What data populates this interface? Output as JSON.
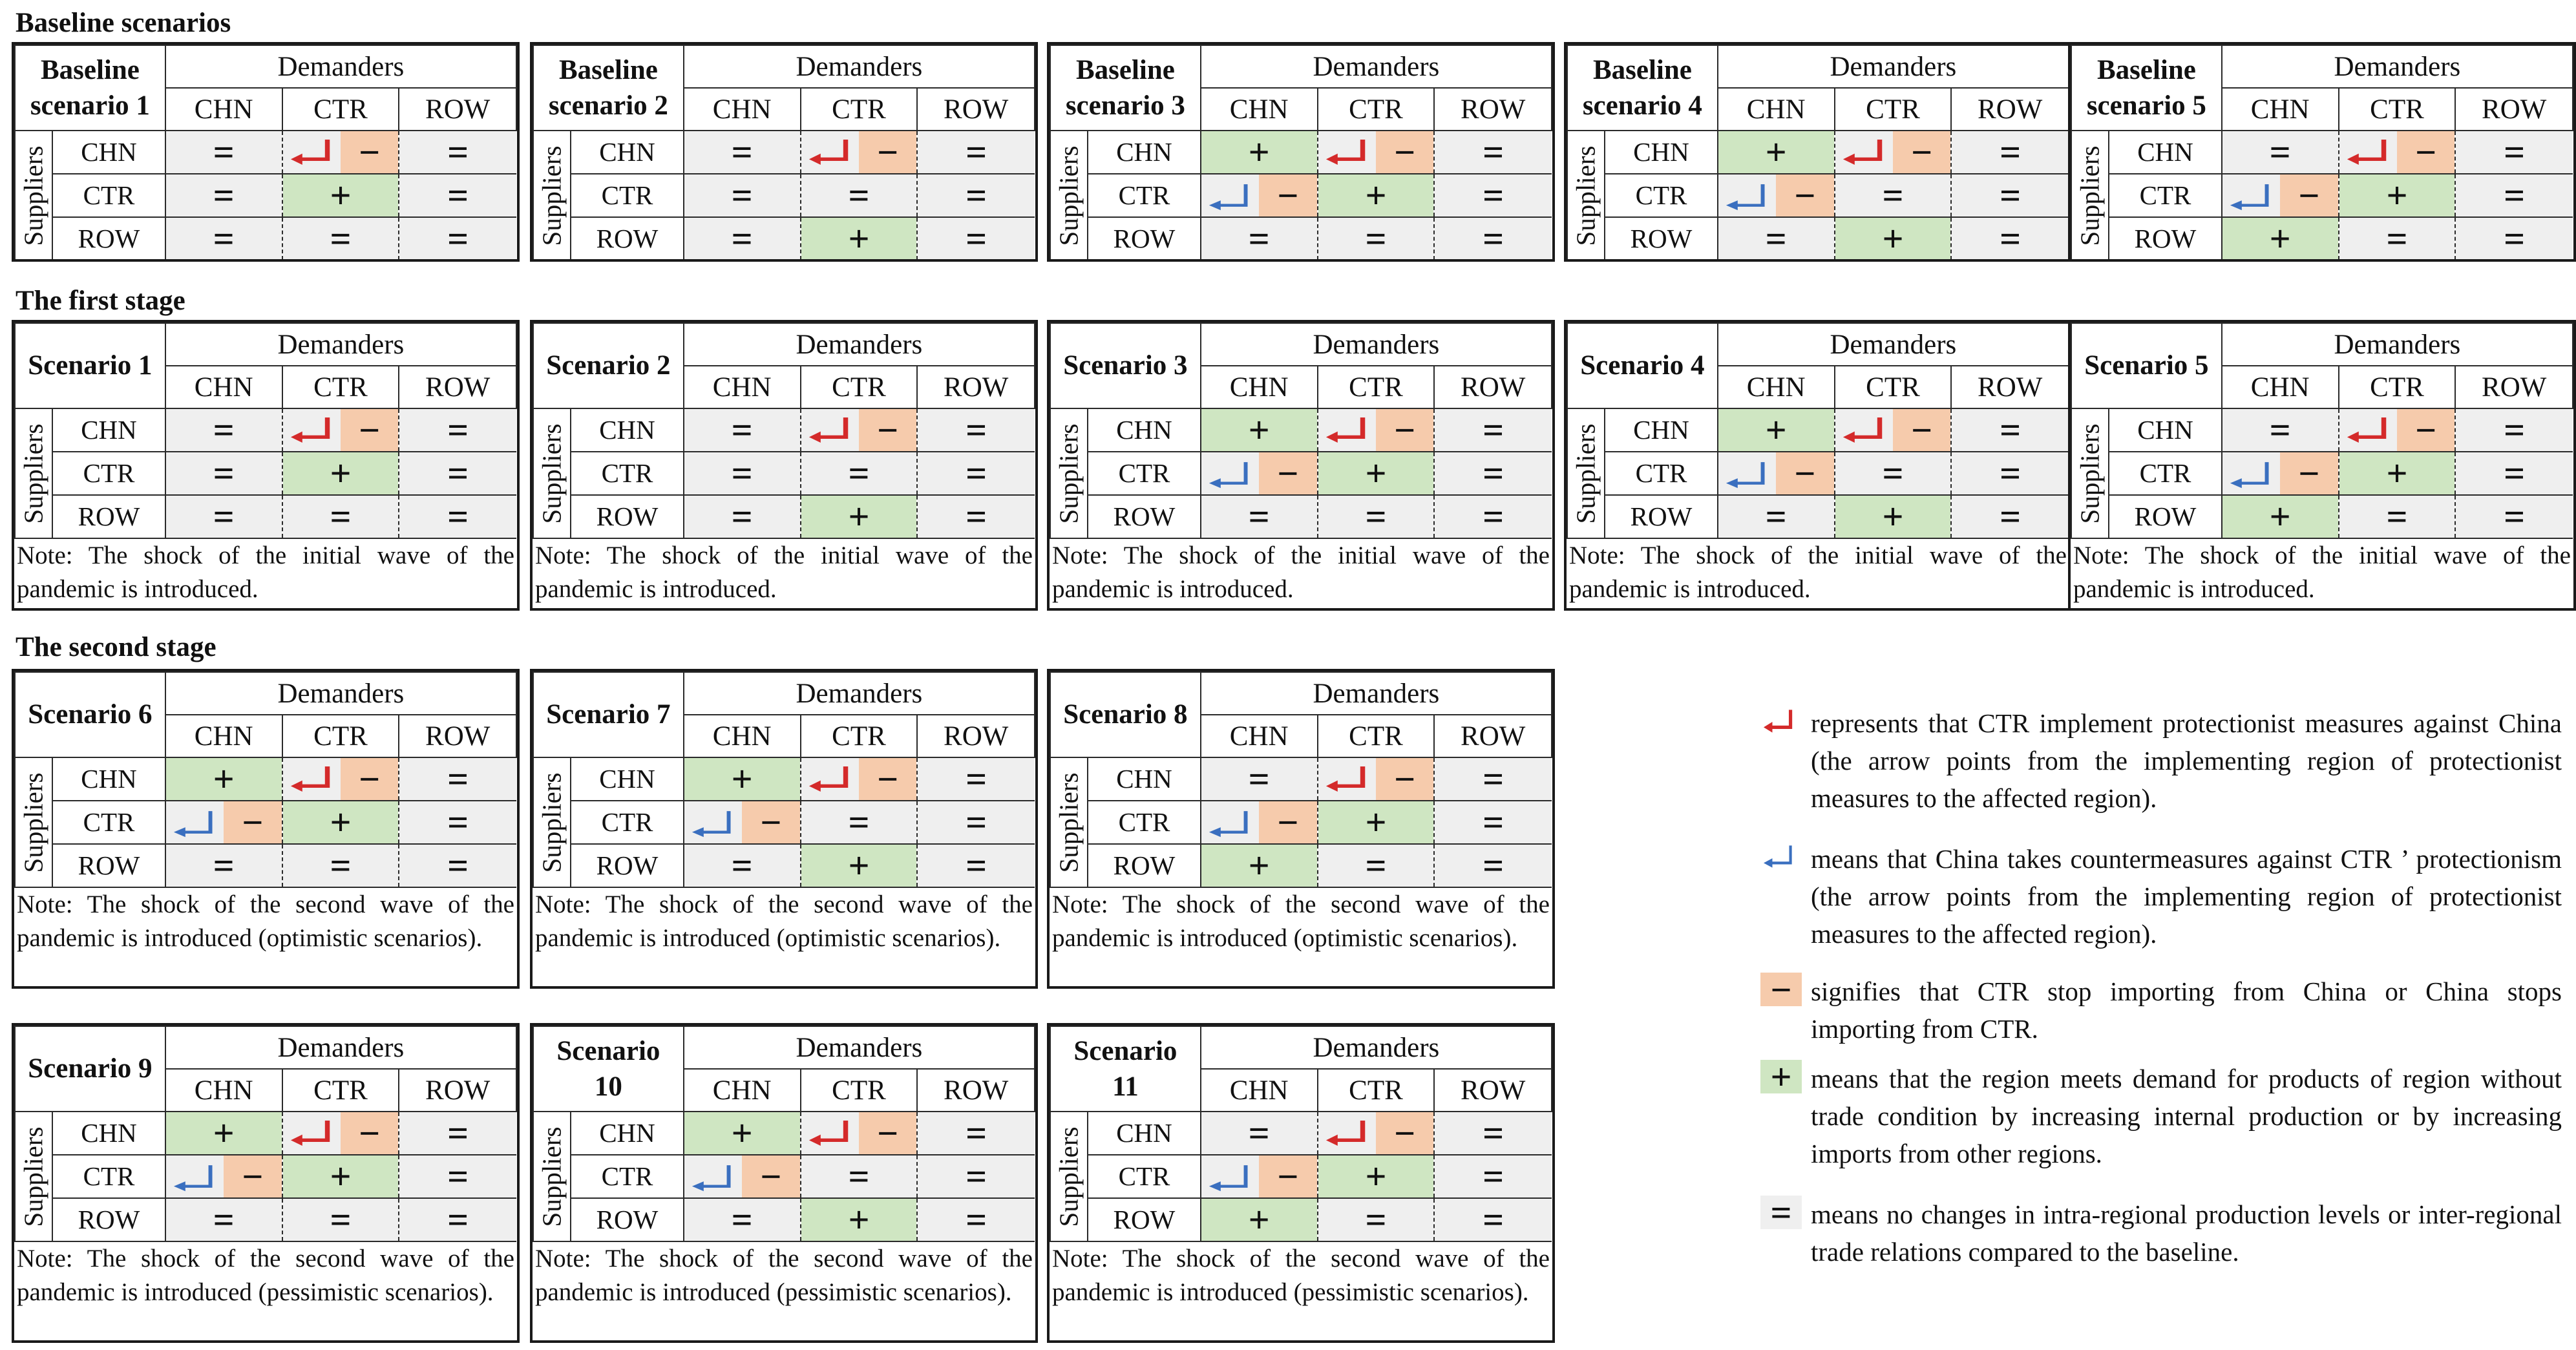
{
  "section_titles": [
    "Baseline scenarios",
    "The first stage",
    "The second stage"
  ],
  "demanders_label": "Demanders",
  "suppliers_label": "Suppliers",
  "regions": [
    "CHN",
    "CTR",
    "ROW"
  ],
  "colors": {
    "green": "#cfe6c2",
    "orange": "#f6cbac",
    "grey": "#efefef",
    "red_arrow": "#d42a2a",
    "blue_arrow": "#3a6fbf"
  },
  "panels": [
    {
      "title": "Baseline scenario 1",
      "note": "",
      "rows": [
        [
          "=",
          "red|−",
          "="
        ],
        [
          "=",
          "+",
          "="
        ],
        [
          "=",
          "=",
          "="
        ]
      ]
    },
    {
      "title": "Baseline scenario 2",
      "note": "",
      "rows": [
        [
          "=",
          "red|−",
          "="
        ],
        [
          "=",
          "=",
          "="
        ],
        [
          "=",
          "+",
          "="
        ]
      ]
    },
    {
      "title": "Baseline scenario 3",
      "note": "",
      "rows": [
        [
          "+",
          "red|−",
          "="
        ],
        [
          "blue|−",
          "+",
          "="
        ],
        [
          "=",
          "=",
          "="
        ]
      ]
    },
    {
      "title": "Baseline scenario 4",
      "note": "",
      "rows": [
        [
          "+",
          "red|−",
          "="
        ],
        [
          "blue|−",
          "=",
          "="
        ],
        [
          "=",
          "+",
          "="
        ]
      ]
    },
    {
      "title": "Baseline scenario 5",
      "note": "",
      "rows": [
        [
          "=",
          "red|−",
          "="
        ],
        [
          "blue|−",
          "+",
          "="
        ],
        [
          "+",
          "=",
          "="
        ]
      ]
    },
    {
      "title": "Scenario 1",
      "note": "Note: The shock of the initial wave of the pandemic is introduced.",
      "rows": [
        [
          "=",
          "red|−",
          "="
        ],
        [
          "=",
          "+",
          "="
        ],
        [
          "=",
          "=",
          "="
        ]
      ]
    },
    {
      "title": "Scenario 2",
      "note": "Note: The shock of the initial wave of the pandemic is introduced.",
      "rows": [
        [
          "=",
          "red|−",
          "="
        ],
        [
          "=",
          "=",
          "="
        ],
        [
          "=",
          "+",
          "="
        ]
      ]
    },
    {
      "title": "Scenario 3",
      "note": "Note: The shock of the initial wave of the pandemic is introduced.",
      "rows": [
        [
          "+",
          "red|−",
          "="
        ],
        [
          "blue|−",
          "+",
          "="
        ],
        [
          "=",
          "=",
          "="
        ]
      ]
    },
    {
      "title": "Scenario 4",
      "note": "Note: The shock of the initial wave of the pandemic is introduced.",
      "rows": [
        [
          "+",
          "red|−",
          "="
        ],
        [
          "blue|−",
          "=",
          "="
        ],
        [
          "=",
          "+",
          "="
        ]
      ]
    },
    {
      "title": "Scenario 5",
      "note": "Note: The shock of the initial wave of the pandemic is introduced.",
      "rows": [
        [
          "=",
          "red|−",
          "="
        ],
        [
          "blue|−",
          "+",
          "="
        ],
        [
          "+",
          "=",
          "="
        ]
      ]
    },
    {
      "title": "Scenario 6",
      "note": "Note: The shock of the second wave of the pandemic is introduced (optimistic scenarios).",
      "rows": [
        [
          "+",
          "red|−",
          "="
        ],
        [
          "blue|−",
          "+",
          "="
        ],
        [
          "=",
          "=",
          "="
        ]
      ]
    },
    {
      "title": "Scenario 7",
      "note": "Note: The shock of the second wave of the pandemic is introduced (optimistic scenarios).",
      "rows": [
        [
          "+",
          "red|−",
          "="
        ],
        [
          "blue|−",
          "=",
          "="
        ],
        [
          "=",
          "+",
          "="
        ]
      ]
    },
    {
      "title": "Scenario 8",
      "note": "Note: The shock of the second wave of the pandemic is introduced (optimistic scenarios).",
      "rows": [
        [
          "=",
          "red|−",
          "="
        ],
        [
          "blue|−",
          "+",
          "="
        ],
        [
          "+",
          "=",
          "="
        ]
      ]
    },
    {
      "title": "Scenario 9",
      "note": "Note: The shock of the second wave of the pandemic is introduced (pessimistic scenarios).",
      "rows": [
        [
          "+",
          "red|−",
          "="
        ],
        [
          "blue|−",
          "+",
          "="
        ],
        [
          "=",
          "=",
          "="
        ]
      ]
    },
    {
      "title": "Scenario 10",
      "note": "Note: The shock of the second wave of the pandemic is introduced (pessimistic scenarios).",
      "rows": [
        [
          "+",
          "red|−",
          "="
        ],
        [
          "blue|−",
          "=",
          "="
        ],
        [
          "=",
          "+",
          "="
        ]
      ]
    },
    {
      "title": "Scenario 11",
      "note": "Note: The shock of the second wave of the pandemic is introduced (pessimistic scenarios).",
      "rows": [
        [
          "=",
          "red|−",
          "="
        ],
        [
          "blue|−",
          "+",
          "="
        ],
        [
          "+",
          "=",
          "="
        ]
      ]
    }
  ],
  "legend": [
    {
      "symbol": "red-arrow",
      "glyph": "",
      "text": "represents that CTR implement protectionist measures against China (the arrow points from the implementing region of protectionist measures to the affected region)."
    },
    {
      "symbol": "blue-arrow",
      "glyph": "",
      "text": "means that China takes countermeasures against CTR ’ protectionism (the arrow points from the implementing region of protectionist measures to the affected region)."
    },
    {
      "symbol": "orange-minus",
      "glyph": "−",
      "text": "signifies that CTR stop importing from China or China stops importing from CTR."
    },
    {
      "symbol": "green-plus",
      "glyph": "+",
      "text": "means that the region meets demand for products of region without trade condition by increasing internal production or by increasing imports from other regions."
    },
    {
      "symbol": "equals",
      "glyph": "=",
      "text": "means no changes in intra-regional production levels or inter-regional trade relations compared to the baseline."
    }
  ]
}
